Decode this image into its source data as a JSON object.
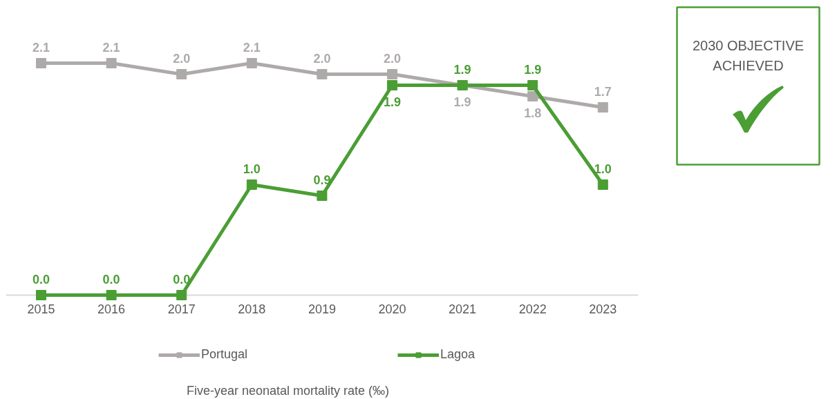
{
  "chart_data": {
    "type": "line",
    "title": "Five-year neonatal mortality rate (‰)",
    "annotations": [
      "2030 OBJECTIVE\nACHIEVED"
    ],
    "categories": [
      "2015",
      "2016",
      "2017",
      "2018",
      "2019",
      "2020",
      "2021",
      "2022",
      "2023"
    ],
    "series": [
      {
        "name": "Portugal",
        "color": "#aeaaaa",
        "values": [
          2.1,
          2.1,
          2.0,
          2.1,
          2.0,
          2.0,
          1.9,
          1.8,
          1.7
        ],
        "value_labels": [
          "2.1",
          "2.1",
          "2.0",
          "2.1",
          "2.0",
          "2.0",
          "1.9",
          "1.8",
          "1.7"
        ]
      },
      {
        "name": "Lagoa",
        "color": "#4a9e34",
        "values": [
          0.0,
          0.0,
          0.0,
          1.0,
          0.9,
          1.9,
          1.9,
          1.9,
          1.0
        ],
        "value_labels": [
          "0.0",
          "0.0",
          "0.0",
          "1.0",
          "0.9",
          "1.9",
          "1.9",
          "1.9",
          "1.0"
        ]
      }
    ],
    "marker": "square",
    "line_style": "solid",
    "legend": "bottom",
    "grid": false,
    "tick_labels": "x"
  }
}
